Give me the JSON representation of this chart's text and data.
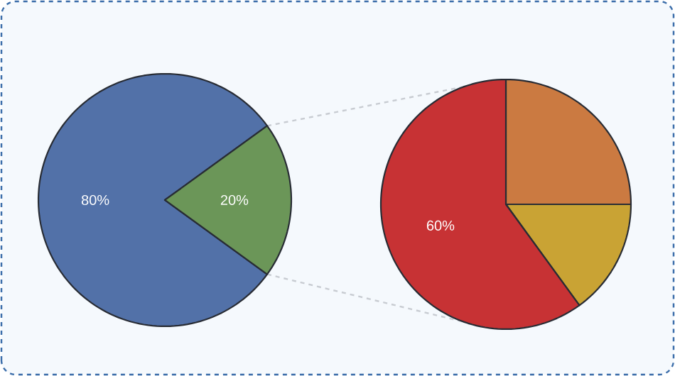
{
  "chart_data": [
    {
      "type": "pie",
      "categories": [
        null,
        null
      ],
      "values": [
        80,
        20
      ],
      "colors": [
        "#5271a8",
        "#6b9658"
      ],
      "value_labels": [
        "80%",
        "20%"
      ]
    },
    {
      "type": "pie",
      "categories": [
        null,
        null,
        null
      ],
      "values": [
        25,
        15,
        60
      ],
      "colors": [
        "#cb7a41",
        "#c9a334",
        "#c73234"
      ],
      "value_labels": [
        null,
        null,
        "60%"
      ]
    }
  ]
}
